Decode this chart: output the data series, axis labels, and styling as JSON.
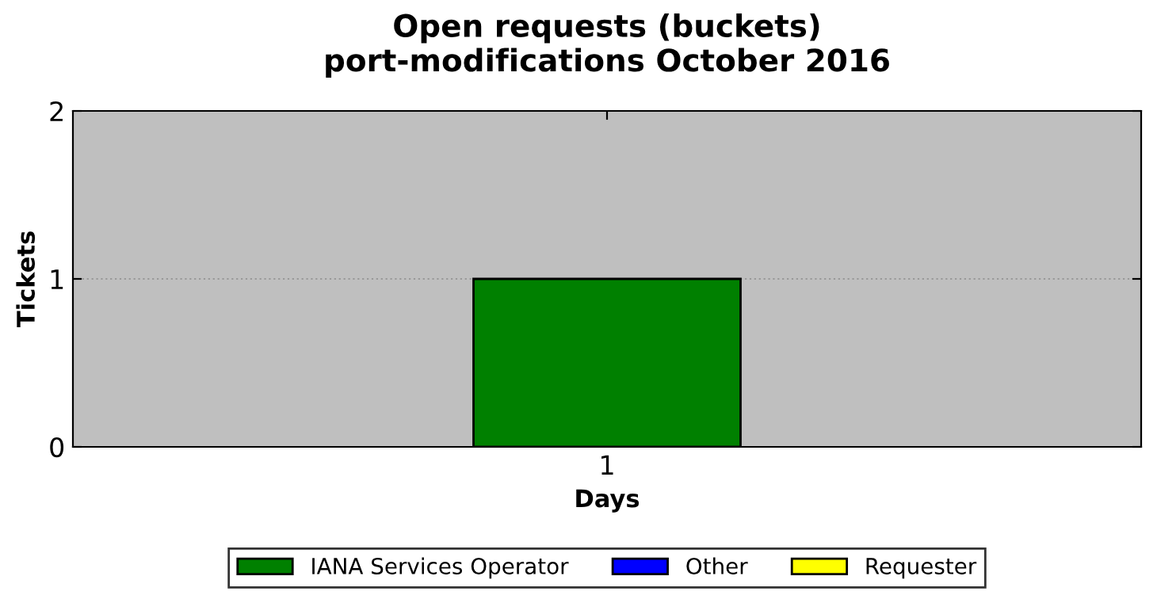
{
  "chart_data": {
    "type": "bar",
    "title": "Open requests (buckets)\nport-modifications October 2016",
    "xlabel": "Days",
    "ylabel": "Tickets",
    "categories": [
      "1"
    ],
    "series": [
      {
        "name": "IANA Services Operator",
        "color": "#008000",
        "values": [
          1
        ]
      },
      {
        "name": "Other",
        "color": "#0000ff",
        "values": [
          0
        ]
      },
      {
        "name": "Requester",
        "color": "#ffff00",
        "values": [
          0
        ]
      }
    ],
    "stacked": true,
    "ylim": [
      0,
      2
    ],
    "yticks": [
      0,
      1,
      2
    ],
    "grid": "y",
    "legend": "bottom"
  }
}
